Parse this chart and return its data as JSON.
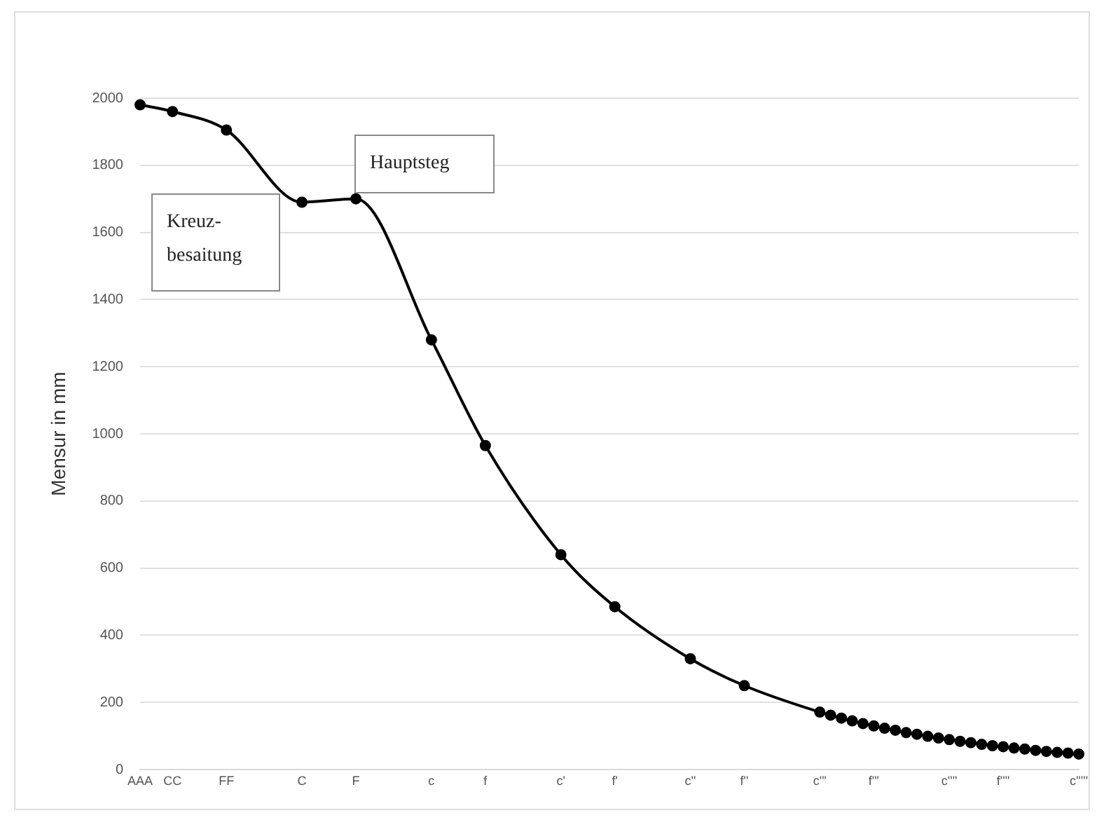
{
  "chart_data": {
    "type": "line",
    "ylabel": "Mensur in mm",
    "annotations": [
      "Kreuz-\nbesaitung",
      "Hauptsteg"
    ],
    "categories": [
      "AAA",
      null,
      null,
      "CC",
      null,
      null,
      null,
      null,
      "FF",
      null,
      null,
      null,
      null,
      null,
      null,
      "C",
      null,
      null,
      null,
      null,
      "F",
      null,
      null,
      null,
      null,
      null,
      null,
      "c",
      null,
      null,
      null,
      null,
      "f",
      null,
      null,
      null,
      null,
      null,
      null,
      "c'",
      null,
      null,
      null,
      null,
      "f'",
      null,
      null,
      null,
      null,
      null,
      null,
      "c''",
      null,
      null,
      null,
      null,
      "f''",
      null,
      null,
      null,
      null,
      null,
      null,
      "c'''",
      null,
      null,
      null,
      null,
      "f'''",
      null,
      null,
      null,
      null,
      null,
      null,
      "c''''",
      null,
      null,
      null,
      null,
      "f''''",
      null,
      null,
      null,
      null,
      null,
      null,
      "c'''''"
    ],
    "series": [
      {
        "color": "#000000",
        "values": [
          1980,
          null,
          null,
          1960,
          null,
          null,
          null,
          null,
          1905,
          null,
          null,
          null,
          null,
          null,
          null,
          1690,
          null,
          null,
          null,
          null,
          1700,
          null,
          null,
          null,
          null,
          null,
          null,
          1280,
          null,
          null,
          null,
          null,
          965,
          null,
          null,
          null,
          null,
          null,
          null,
          640,
          null,
          null,
          null,
          null,
          485,
          null,
          null,
          null,
          null,
          null,
          null,
          330,
          null,
          null,
          null,
          null,
          250,
          null,
          null,
          null,
          null,
          null,
          null,
          171,
          162,
          153,
          145,
          137,
          130,
          123,
          117,
          110,
          105,
          99,
          94,
          89,
          84,
          80,
          75,
          71,
          68,
          64,
          61,
          57,
          54,
          51,
          49,
          46
        ]
      }
    ],
    "ylim": [
      0,
      2000
    ],
    "yticks": [
      0,
      200,
      400,
      600,
      800,
      1000,
      1200,
      1400,
      1600,
      1800,
      2000
    ],
    "grid": "y",
    "legend": false,
    "marker": "circle",
    "line_style": "solid"
  }
}
